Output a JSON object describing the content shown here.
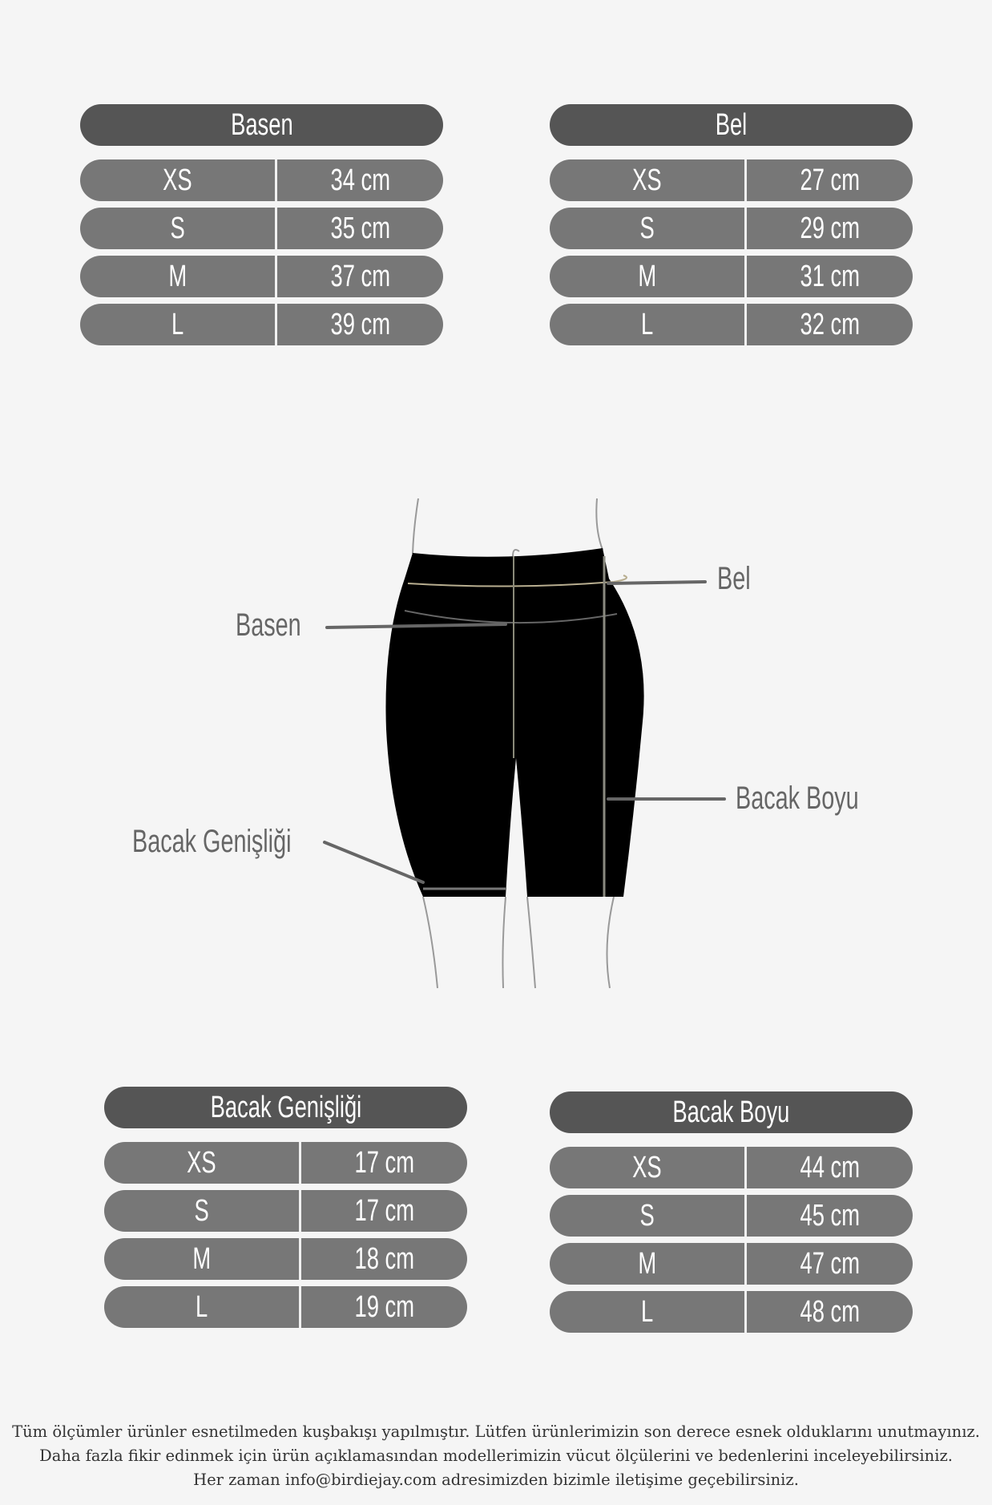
{
  "tables": [
    {
      "title": "Basen",
      "rows": [
        {
          "size": "XS",
          "value": "34 cm"
        },
        {
          "size": "S",
          "value": "35 cm"
        },
        {
          "size": "M",
          "value": "37 cm"
        },
        {
          "size": "L",
          "value": "39 cm"
        }
      ]
    },
    {
      "title": "Bel",
      "rows": [
        {
          "size": "XS",
          "value": "27 cm"
        },
        {
          "size": "S",
          "value": "29 cm"
        },
        {
          "size": "M",
          "value": "31 cm"
        },
        {
          "size": "L",
          "value": "32 cm"
        }
      ]
    },
    {
      "title": "Bacak Genişliği",
      "rows": [
        {
          "size": "XS",
          "value": "17 cm"
        },
        {
          "size": "S",
          "value": "17 cm"
        },
        {
          "size": "M",
          "value": "18 cm"
        },
        {
          "size": "L",
          "value": "19 cm"
        }
      ]
    },
    {
      "title": "Bacak Boyu",
      "rows": [
        {
          "size": "XS",
          "value": "44 cm"
        },
        {
          "size": "S",
          "value": "45 cm"
        },
        {
          "size": "M",
          "value": "47 cm"
        },
        {
          "size": "L",
          "value": "48 cm"
        }
      ]
    }
  ],
  "diagram": {
    "labels": {
      "bel": "Bel",
      "basen": "Basen",
      "bacak_boyu": "Bacak Boyu",
      "bacak_genisligi": "Bacak Genişliği"
    }
  },
  "footer": {
    "lines": [
      "Tüm ölçümler ürünler esnetilmeden kuşbakışı yapılmıştır. Lütfen ürünlerimizin son derece esnek olduklarını unutmayınız.",
      "Daha fazla fikir edinmek için ürün açıklamasından modellerimizin vücut ölçülerini ve bedenlerini inceleyebilirsiniz.",
      "Her zaman info@birdiejay.com adresimizden bizimle iletişime geçebilirsiniz."
    ]
  },
  "colors": {
    "background": "#f5f5f5",
    "header": "#555555",
    "row": "#777777",
    "label": "#666666"
  }
}
